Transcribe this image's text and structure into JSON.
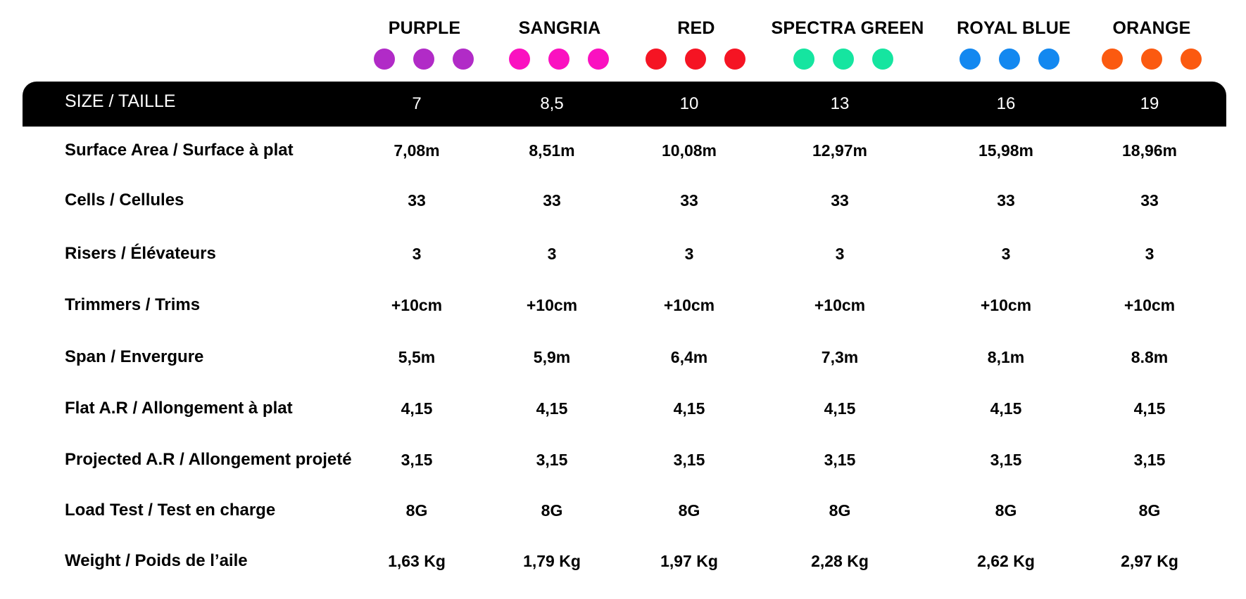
{
  "colors": [
    {
      "name": "PURPLE",
      "hex": "#B12BC7"
    },
    {
      "name": "SANGRIA",
      "hex": "#FA11C0"
    },
    {
      "name": "RED",
      "hex": "#F51423"
    },
    {
      "name": "SPECTRA GREEN",
      "hex": "#15E5A0"
    },
    {
      "name": "ROYAL BLUE",
      "hex": "#1388F0"
    },
    {
      "name": "ORANGE",
      "hex": "#FB5A10"
    }
  ],
  "table": {
    "header_label": "SIZE / TAILLE",
    "sizes": [
      "7",
      "8,5",
      "10",
      "13",
      "16",
      "19"
    ],
    "rows": [
      {
        "label": "Surface Area / Surface à plat",
        "values": [
          "7,08m",
          "8,51m",
          "10,08m",
          "12,97m",
          "15,98m",
          "18,96m"
        ]
      },
      {
        "label": "Cells / Cellules",
        "values": [
          "33",
          "33",
          "33",
          "33",
          "33",
          "33"
        ]
      },
      {
        "label": "Risers / Élévateurs",
        "values": [
          "3",
          "3",
          "3",
          "3",
          "3",
          "3"
        ]
      },
      {
        "label": "Trimmers / Trims",
        "values": [
          "+10cm",
          "+10cm",
          "+10cm",
          "+10cm",
          "+10cm",
          "+10cm"
        ]
      },
      {
        "label": "Span / Envergure",
        "values": [
          "5,5m",
          "5,9m",
          "6,4m",
          "7,3m",
          "8,1m",
          "8.8m"
        ]
      },
      {
        "label": "Flat A.R / Allongement à plat",
        "values": [
          "4,15",
          "4,15",
          "4,15",
          "4,15",
          "4,15",
          "4,15"
        ]
      },
      {
        "label": "Projected A.R / Allongement projeté",
        "values": [
          "3,15",
          "3,15",
          "3,15",
          "3,15",
          "3,15",
          "3,15"
        ]
      },
      {
        "label": "Load Test / Test en charge",
        "values": [
          "8G",
          "8G",
          "8G",
          "8G",
          "8G",
          "8G"
        ]
      },
      {
        "label": "Weight / Poids de l’aile",
        "values": [
          "1,63 Kg",
          "1,79 Kg",
          "1,97 Kg",
          "2,28 Kg",
          "2,62 Kg",
          "2,97 Kg"
        ]
      }
    ]
  }
}
